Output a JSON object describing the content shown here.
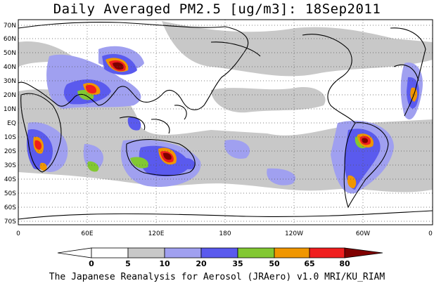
{
  "title": "Daily Averaged PM2.5 [ug/m3]: 18Sep2011",
  "footer": "The Japanese Reanalysis for Aerosol (JRAero) v1.0 MRI/KU_RIAM",
  "map": {
    "lat_labels": [
      "70N",
      "60N",
      "50N",
      "40N",
      "30N",
      "20N",
      "10N",
      "EQ",
      "10S",
      "20S",
      "30S",
      "40S",
      "50S",
      "60S",
      "70S"
    ],
    "lon_labels": [
      "0",
      "60E",
      "120E",
      "180",
      "120W",
      "60W",
      "0"
    ],
    "colorbar": {
      "bins": [
        {
          "label": "0",
          "color": "#ffffff"
        },
        {
          "label": "5",
          "color": "#ffffff"
        },
        {
          "label": "10",
          "color": "#c8c8c8"
        },
        {
          "label": "20",
          "color": "#a0a0f0"
        },
        {
          "label": "35",
          "color": "#5a5aee"
        },
        {
          "label": "50",
          "color": "#82c832"
        },
        {
          "label": "65",
          "color": "#f09600"
        },
        {
          "label": "80",
          "color": "#f01e1e"
        },
        {
          "label": "",
          "color": "#800000"
        }
      ]
    }
  }
}
